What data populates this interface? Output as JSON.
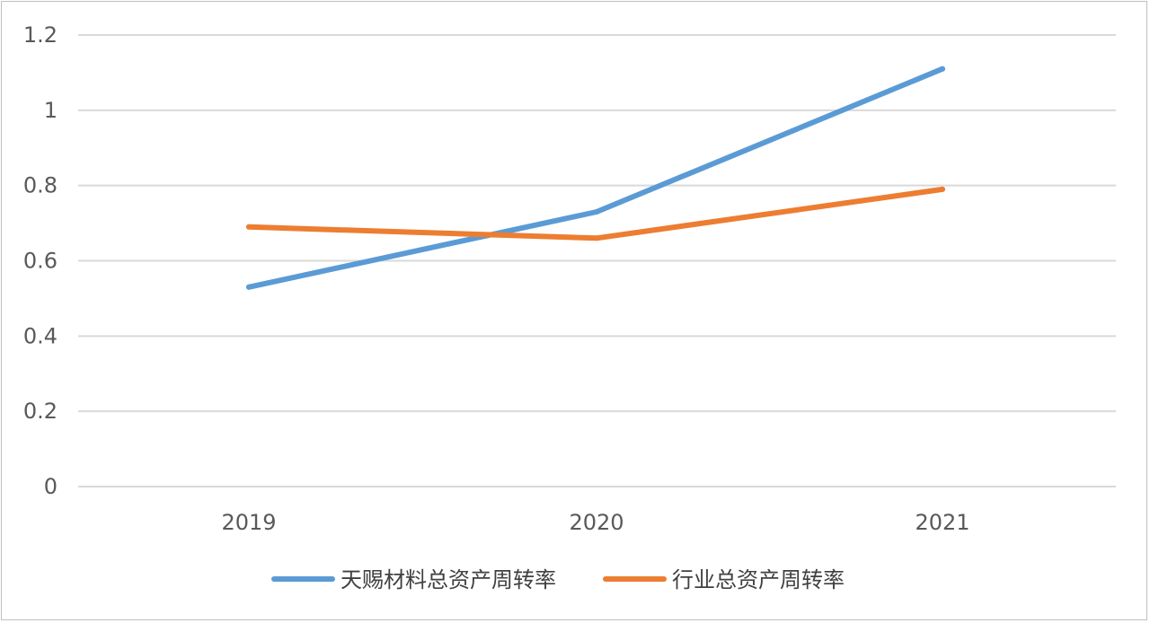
{
  "chart_data": {
    "type": "line",
    "categories": [
      "2019",
      "2020",
      "2021"
    ],
    "series": [
      {
        "name": "天赐材料总资产周转率",
        "values": [
          0.53,
          0.73,
          1.11
        ],
        "color": "#5b9bd5"
      },
      {
        "name": "行业总资产周转率",
        "values": [
          0.69,
          0.66,
          0.79
        ],
        "color": "#ed7d31"
      }
    ],
    "y_ticks": [
      "0",
      "0.2",
      "0.4",
      "0.6",
      "0.8",
      "1",
      "1.2"
    ],
    "ylim": [
      0,
      1.2
    ],
    "grid": true,
    "legend_position": "bottom",
    "title": "",
    "xlabel": "",
    "ylabel": ""
  }
}
